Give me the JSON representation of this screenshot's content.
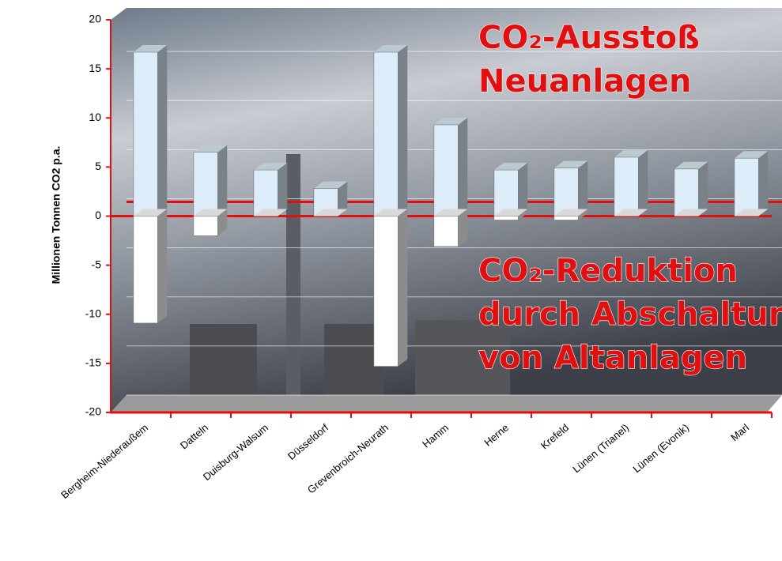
{
  "chart_data": {
    "type": "bar3d",
    "y_label": "Millionen Tonnen CO2 p.a.",
    "categories": [
      "Bergheim-Niederaußem",
      "Datteln",
      "Duisburg-Walsum",
      "Düsseldorf",
      "Grevenbroich-Neurath",
      "Hamm",
      "Herne",
      "Krefeld",
      "Lünen (Trianel)",
      "Lünen (Evonik)",
      "Marl"
    ],
    "series": [
      {
        "color": "#dcecf8",
        "values": [
          16.7,
          6.5,
          4.7,
          2.8,
          16.7,
          9.3,
          4.7,
          4.9,
          6.0,
          4.8,
          5.9
        ]
      },
      {
        "color": "#ffffff",
        "values": [
          -10.9,
          -2.0,
          0,
          0,
          -15.3,
          -3.1,
          -0.4,
          -0.4,
          0,
          0,
          0
        ]
      }
    ],
    "annotations": [
      {
        "lines": [
          "CO₂-Ausstoß",
          "Neuanlagen"
        ]
      },
      {
        "lines": [
          "CO₂-Reduktion",
          "durch Abschaltung",
          "von Altanlagen"
        ]
      }
    ],
    "ylim": [
      -20,
      20
    ],
    "yticks": [
      -20,
      -15,
      -10,
      -5,
      0,
      5,
      10,
      15,
      20
    ],
    "grid": true
  }
}
